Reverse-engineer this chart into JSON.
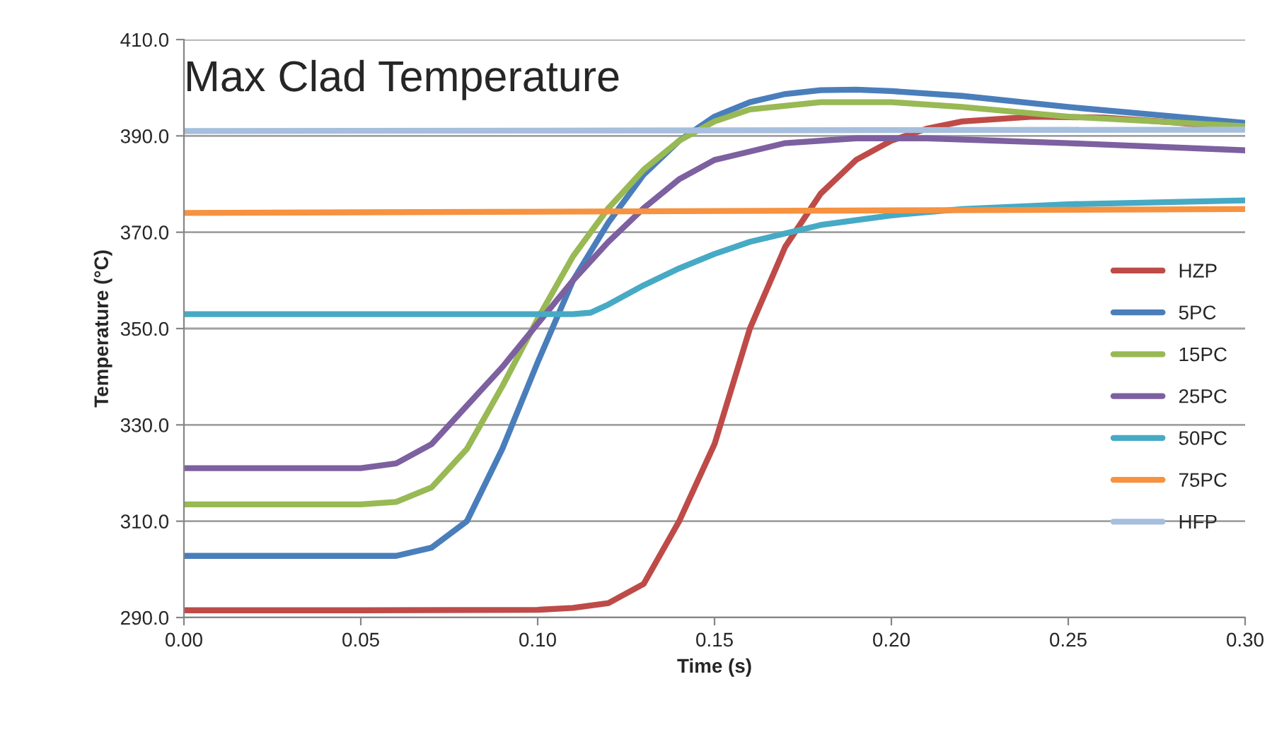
{
  "chart_data": {
    "type": "line",
    "title": "Max Clad Temperature",
    "xlabel": "Time (s)",
    "ylabel": "Temperature (°C)",
    "xlim": [
      0,
      0.3
    ],
    "ylim": [
      290,
      410
    ],
    "xticks": [
      {
        "value": 0,
        "label": "0.00"
      },
      {
        "value": 0.05,
        "label": "0.05"
      },
      {
        "value": 0.1,
        "label": "0.10"
      },
      {
        "value": 0.15,
        "label": "0.15"
      },
      {
        "value": 0.2,
        "label": "0.20"
      },
      {
        "value": 0.25,
        "label": "0.25"
      },
      {
        "value": 0.3,
        "label": "0.30"
      }
    ],
    "yticks": [
      {
        "value": 290,
        "label": "290.0"
      },
      {
        "value": 310,
        "label": "310.0"
      },
      {
        "value": 330,
        "label": "330.0"
      },
      {
        "value": 350,
        "label": "350.0"
      },
      {
        "value": 370,
        "label": "370.0"
      },
      {
        "value": 390,
        "label": "390.0"
      },
      {
        "value": 410,
        "label": "410.0"
      }
    ],
    "grid": "y",
    "legend": "right",
    "marker": "none",
    "line_style": "solid",
    "series": [
      {
        "name": "HZP",
        "color": "#be4b48",
        "x": [
          0,
          0.05,
          0.1,
          0.11,
          0.12,
          0.13,
          0.14,
          0.15,
          0.16,
          0.17,
          0.18,
          0.19,
          0.2,
          0.21,
          0.22,
          0.24,
          0.26,
          0.28,
          0.3
        ],
        "values": [
          291.5,
          291.5,
          291.6,
          292,
          293,
          297,
          310,
          326,
          350,
          367,
          378,
          385,
          389,
          391.5,
          393,
          394,
          393.8,
          392.8,
          391.5
        ]
      },
      {
        "name": "5PC",
        "color": "#4a7ebb",
        "x": [
          0,
          0.06,
          0.07,
          0.08,
          0.09,
          0.1,
          0.11,
          0.12,
          0.13,
          0.14,
          0.15,
          0.16,
          0.17,
          0.18,
          0.19,
          0.2,
          0.22,
          0.25,
          0.3
        ],
        "values": [
          302.8,
          302.8,
          304.5,
          310,
          325,
          343,
          360,
          372,
          382,
          389,
          394,
          397,
          398.7,
          399.5,
          399.6,
          399.3,
          398.3,
          396,
          392.7
        ]
      },
      {
        "name": "15PC",
        "color": "#98b954",
        "x": [
          0,
          0.05,
          0.06,
          0.07,
          0.08,
          0.09,
          0.1,
          0.11,
          0.12,
          0.13,
          0.14,
          0.15,
          0.16,
          0.18,
          0.2,
          0.22,
          0.25,
          0.3
        ],
        "values": [
          313.5,
          313.5,
          314,
          317,
          325,
          338,
          352,
          365,
          375,
          383,
          389,
          393,
          395.5,
          397,
          397,
          396,
          394,
          392
        ]
      },
      {
        "name": "25PC",
        "color": "#7d60a0",
        "x": [
          0,
          0.05,
          0.06,
          0.07,
          0.08,
          0.09,
          0.1,
          0.11,
          0.12,
          0.13,
          0.14,
          0.15,
          0.17,
          0.19,
          0.21,
          0.25,
          0.3
        ],
        "values": [
          321,
          321,
          322,
          326,
          334,
          342,
          351,
          360,
          368,
          375,
          381,
          385,
          388.5,
          389.5,
          389.5,
          388.5,
          387
        ]
      },
      {
        "name": "50PC",
        "color": "#46aac5",
        "x": [
          0,
          0.11,
          0.115,
          0.12,
          0.13,
          0.14,
          0.15,
          0.16,
          0.18,
          0.2,
          0.22,
          0.25,
          0.3
        ],
        "values": [
          353,
          353,
          353.3,
          355,
          359,
          362.5,
          365.5,
          368,
          371.5,
          373.5,
          374.8,
          375.8,
          376.6
        ]
      },
      {
        "name": "75PC",
        "color": "#f69240",
        "x": [
          0,
          0.3
        ],
        "values": [
          374,
          374.8
        ]
      },
      {
        "name": "HFP",
        "color": "#a7bfde",
        "x": [
          0,
          0.3
        ],
        "values": [
          391,
          391.3
        ]
      }
    ]
  }
}
